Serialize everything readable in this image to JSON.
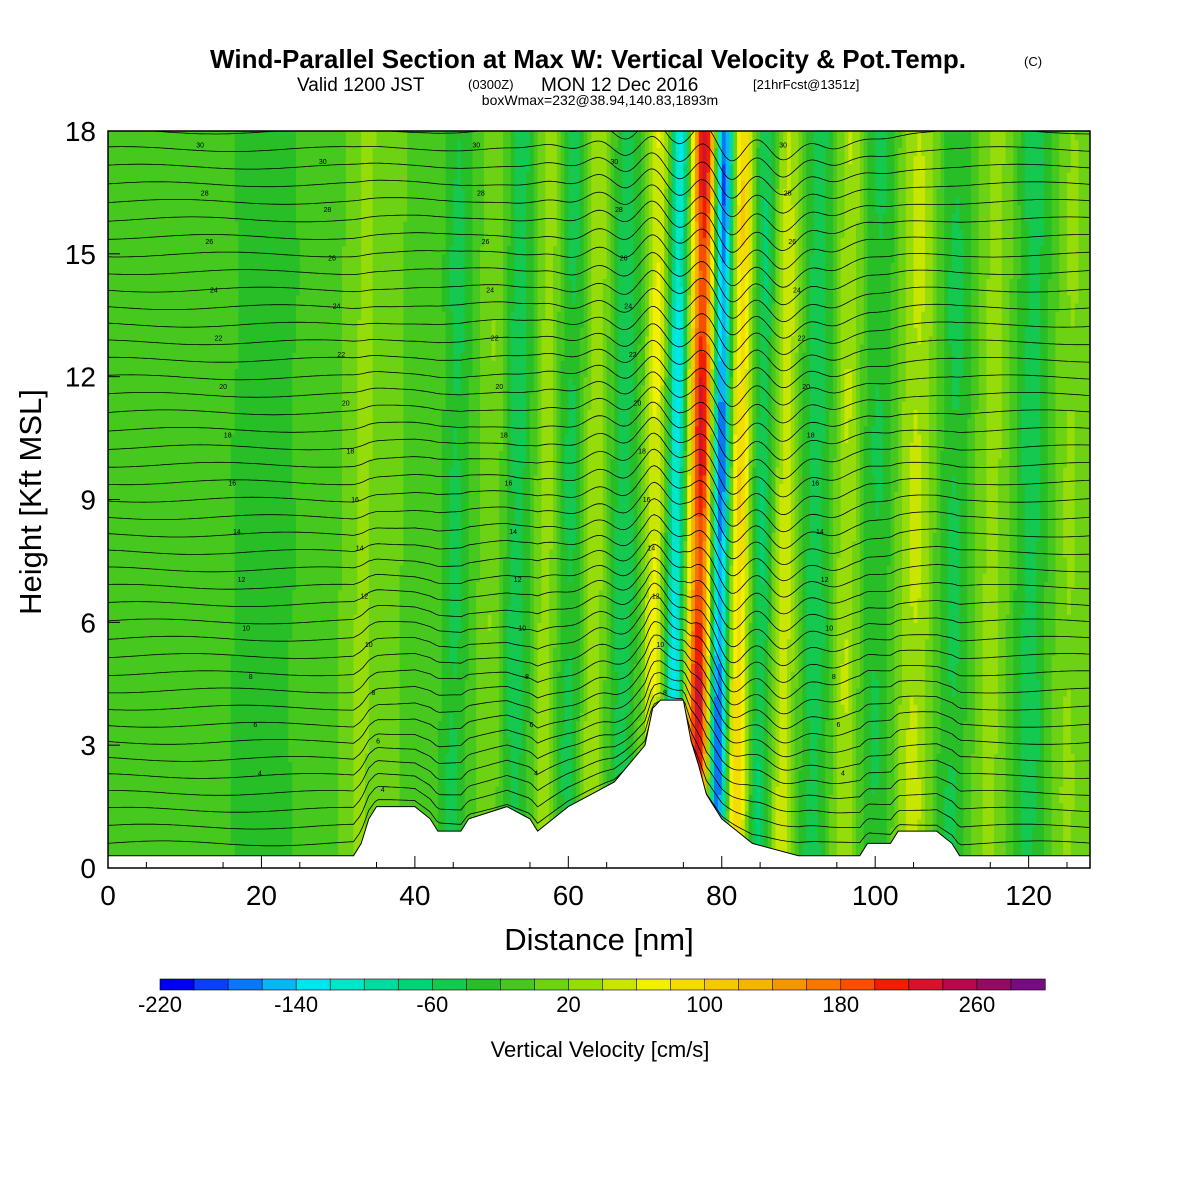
{
  "chart_data": {
    "type": "heatmap",
    "title": "Wind-Parallel Section at Max W: Vertical Velocity & Pot.Temp.",
    "title_mark": "(C)",
    "subtitle": {
      "valid": "Valid 1200 JST",
      "utc": "(0300Z)",
      "date": "MON 12 Dec 2016",
      "fcst": "[21hrFcst@1351z]"
    },
    "boxline": "boxWmax=232@38.94,140.83,1893m",
    "xlabel": "Distance [nm]",
    "ylabel": "Height [Kft MSL]",
    "xlim": [
      0,
      128
    ],
    "ylim": [
      0,
      18
    ],
    "x_ticks": [
      {
        "value": 0,
        "label": "0"
      },
      {
        "value": 20,
        "label": "20"
      },
      {
        "value": 40,
        "label": "40"
      },
      {
        "value": 60,
        "label": "60"
      },
      {
        "value": 80,
        "label": "80"
      },
      {
        "value": 100,
        "label": "100"
      },
      {
        "value": 120,
        "label": "120"
      }
    ],
    "y_ticks": [
      {
        "value": 0,
        "label": "0"
      },
      {
        "value": 3,
        "label": "3"
      },
      {
        "value": 6,
        "label": "6"
      },
      {
        "value": 9,
        "label": "9"
      },
      {
        "value": 12,
        "label": "12"
      },
      {
        "value": 15,
        "label": "15"
      },
      {
        "value": 18,
        "label": "18"
      }
    ],
    "colorbar": {
      "label": "Vertical Velocity [cm/s]",
      "min": -220,
      "max": 300,
      "step": 20,
      "colors": [
        "#0000f0",
        "#0a40f5",
        "#0a78f5",
        "#0ab4f5",
        "#00e6f0",
        "#00e6c8",
        "#00dca0",
        "#00d278",
        "#14c850",
        "#28be28",
        "#46c81e",
        "#6ed214",
        "#96dc0a",
        "#c8e600",
        "#f0f000",
        "#f5dc00",
        "#f5c800",
        "#f5b400",
        "#f59600",
        "#f57800",
        "#f55000",
        "#f01e00",
        "#d2142d",
        "#b40a4b",
        "#960a64",
        "#780a82"
      ],
      "tick_labels": [
        {
          "value": -220,
          "label": "-220"
        },
        {
          "value": -140,
          "label": "-140"
        },
        {
          "value": -60,
          "label": "-60"
        },
        {
          "value": 20,
          "label": "20"
        },
        {
          "value": 100,
          "label": "100"
        },
        {
          "value": 180,
          "label": "180"
        },
        {
          "value": 260,
          "label": "260"
        }
      ]
    },
    "background_velocity": 0,
    "velocity_bands": [
      {
        "x": 3,
        "w": 4,
        "v": -15
      },
      {
        "x": 20,
        "w": 5,
        "v": -40
      },
      {
        "x": 33,
        "w": 1.5,
        "v": 30
      },
      {
        "x": 45,
        "w": 2,
        "v": -50
      },
      {
        "x": 50,
        "w": 1.5,
        "v": 25
      },
      {
        "x": 53,
        "w": 2,
        "v": -55
      },
      {
        "x": 57,
        "w": 1.5,
        "v": 40
      },
      {
        "x": 60,
        "w": 2,
        "v": -50
      },
      {
        "x": 63,
        "w": 1.5,
        "v": 45
      },
      {
        "x": 67,
        "w": 1.8,
        "v": -60
      },
      {
        "x": 71,
        "w": 1.3,
        "v": 70
      },
      {
        "x": 73.8,
        "w": 1.2,
        "v": -140
      },
      {
        "x": 77,
        "w": 1.6,
        "v": 240
      },
      {
        "x": 79.5,
        "w": 1.3,
        "v": -210
      },
      {
        "x": 82,
        "w": 1.5,
        "v": 110
      },
      {
        "x": 85,
        "w": 1.6,
        "v": -70
      },
      {
        "x": 88,
        "w": 1.8,
        "v": 60
      },
      {
        "x": 92,
        "w": 2.5,
        "v": -55
      },
      {
        "x": 96,
        "w": 1.8,
        "v": 50
      },
      {
        "x": 100,
        "w": 2.5,
        "v": -45
      },
      {
        "x": 105,
        "w": 2.5,
        "v": 50
      },
      {
        "x": 110,
        "w": 2.5,
        "v": -50
      },
      {
        "x": 115,
        "w": 2.5,
        "v": 30
      },
      {
        "x": 120,
        "w": 2.5,
        "v": -55
      },
      {
        "x": 125,
        "w": 2,
        "v": 25
      }
    ],
    "terrain": [
      [
        0,
        0.3
      ],
      [
        32,
        0.3
      ],
      [
        33,
        0.6
      ],
      [
        34,
        1.2
      ],
      [
        35,
        1.5
      ],
      [
        40,
        1.5
      ],
      [
        42,
        1.2
      ],
      [
        43,
        0.9
      ],
      [
        46,
        0.9
      ],
      [
        47,
        1.2
      ],
      [
        52,
        1.5
      ],
      [
        55,
        1.2
      ],
      [
        56,
        0.9
      ],
      [
        58,
        1.2
      ],
      [
        60,
        1.5
      ],
      [
        63,
        1.8
      ],
      [
        66,
        2.1
      ],
      [
        70,
        3.0
      ],
      [
        71,
        3.9
      ],
      [
        72,
        4.1
      ],
      [
        75,
        4.1
      ],
      [
        76,
        3.1
      ],
      [
        77,
        2.5
      ],
      [
        78,
        1.8
      ],
      [
        79,
        1.5
      ],
      [
        80,
        1.2
      ],
      [
        82,
        0.9
      ],
      [
        84,
        0.6
      ],
      [
        90,
        0.3
      ],
      [
        98,
        0.3
      ],
      [
        99,
        0.6
      ],
      [
        102,
        0.6
      ],
      [
        103,
        0.9
      ],
      [
        108,
        0.9
      ],
      [
        110,
        0.6
      ],
      [
        111,
        0.3
      ],
      [
        128,
        0.3
      ]
    ],
    "theta_contour_labels": [
      "30",
      "28",
      "26",
      "24",
      "22",
      "20",
      "18",
      "16",
      "14",
      "12",
      "10",
      "8",
      "6",
      "4"
    ]
  }
}
